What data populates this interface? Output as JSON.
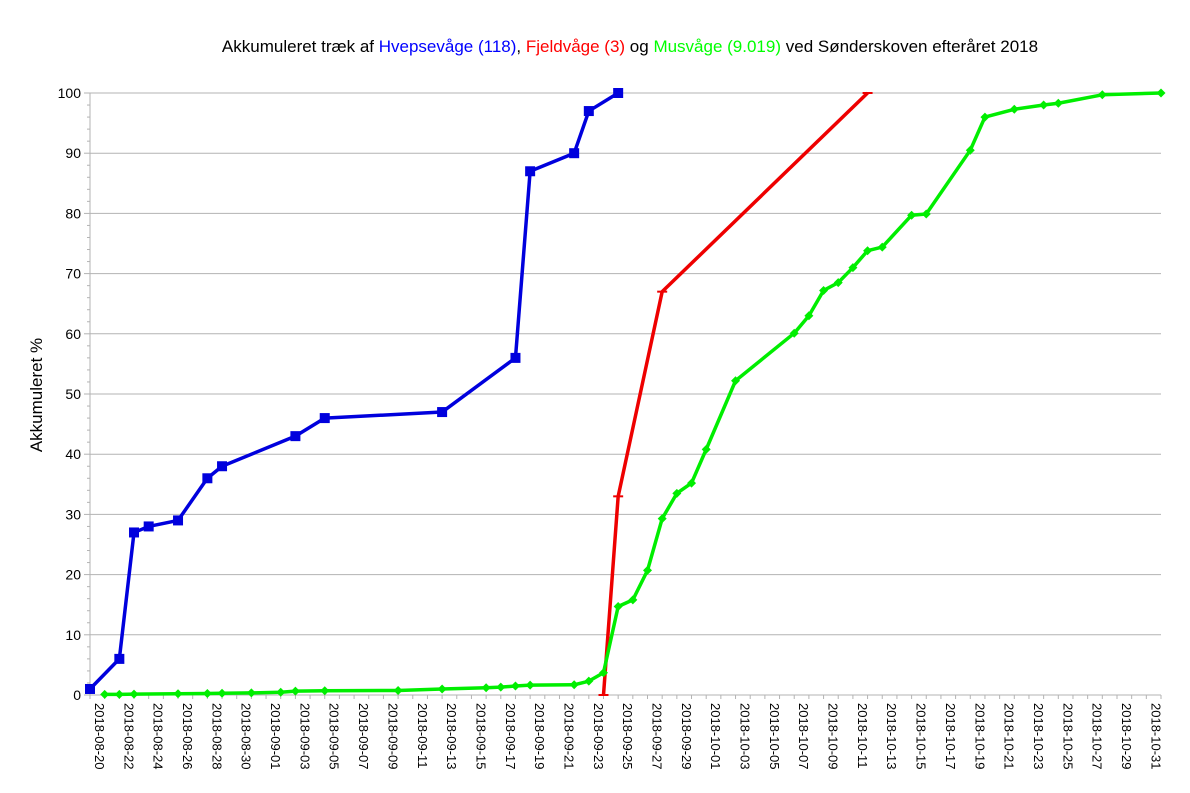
{
  "chart_data": {
    "type": "line",
    "title_parts": [
      {
        "text": "Akkumuleret træk af ",
        "color": "#000000"
      },
      {
        "text": "Hvepsevåge (118)",
        "color": "#0000ff"
      },
      {
        "text": ", ",
        "color": "#000000"
      },
      {
        "text": "Fjeldvåge (3)",
        "color": "#ff0000"
      },
      {
        "text": " og ",
        "color": "#000000"
      },
      {
        "text": "Musvåge (9.019)",
        "color": "#00ff00"
      },
      {
        "text": " ved Sønderskoven efteråret 2018",
        "color": "#000000"
      }
    ],
    "ylabel": "Akkumuleret %",
    "xlabel": "",
    "x_type": "date",
    "xlim": [
      "2018-08-20",
      "2018-11-01"
    ],
    "ylim": [
      0,
      100
    ],
    "y_ticks": [
      0,
      10,
      20,
      30,
      40,
      50,
      60,
      70,
      80,
      90,
      100
    ],
    "x_ticks": [
      "2018-08-20",
      "2018-08-22",
      "2018-08-24",
      "2018-08-26",
      "2018-08-28",
      "2018-08-30",
      "2018-09-01",
      "2018-09-03",
      "2018-09-05",
      "2018-09-07",
      "2018-09-09",
      "2018-09-11",
      "2018-09-13",
      "2018-09-15",
      "2018-09-17",
      "2018-09-19",
      "2018-09-21",
      "2018-09-23",
      "2018-09-25",
      "2018-09-27",
      "2018-09-29",
      "2018-10-01",
      "2018-10-03",
      "2018-10-05",
      "2018-10-07",
      "2018-10-09",
      "2018-10-11",
      "2018-10-13",
      "2018-10-15",
      "2018-10-17",
      "2018-10-19",
      "2018-10-21",
      "2018-10-23",
      "2018-10-25",
      "2018-10-27",
      "2018-10-29",
      "2018-10-31"
    ],
    "grid": true,
    "legend": "none",
    "series": [
      {
        "color": "#0000dd",
        "marker": "square",
        "points": [
          [
            "2018-08-20",
            1
          ],
          [
            "2018-08-22",
            6
          ],
          [
            "2018-08-23",
            27
          ],
          [
            "2018-08-24",
            28
          ],
          [
            "2018-08-26",
            29
          ],
          [
            "2018-08-28",
            36
          ],
          [
            "2018-08-29",
            38
          ],
          [
            "2018-09-03",
            43
          ],
          [
            "2018-09-05",
            46
          ],
          [
            "2018-09-13",
            47
          ],
          [
            "2018-09-18",
            56
          ],
          [
            "2018-09-19",
            87
          ],
          [
            "2018-09-22",
            90
          ],
          [
            "2018-09-23",
            97
          ],
          [
            "2018-09-25",
            100
          ]
        ]
      },
      {
        "color": "#ee0000",
        "marker": "dash",
        "points": [
          [
            "2018-09-24",
            0
          ],
          [
            "2018-09-25",
            33
          ],
          [
            "2018-09-28",
            67
          ],
          [
            "2018-10-12",
            100
          ]
        ]
      },
      {
        "color": "#00ee00",
        "marker": "diamond",
        "points": [
          [
            "2018-08-21",
            0.1
          ],
          [
            "2018-08-22",
            0.1
          ],
          [
            "2018-08-23",
            0.15
          ],
          [
            "2018-08-26",
            0.2
          ],
          [
            "2018-08-28",
            0.25
          ],
          [
            "2018-08-29",
            0.3
          ],
          [
            "2018-08-31",
            0.35
          ],
          [
            "2018-09-02",
            0.45
          ],
          [
            "2018-09-03",
            0.65
          ],
          [
            "2018-09-05",
            0.7
          ],
          [
            "2018-09-10",
            0.75
          ],
          [
            "2018-09-13",
            1.0
          ],
          [
            "2018-09-16",
            1.2
          ],
          [
            "2018-09-17",
            1.3
          ],
          [
            "2018-09-18",
            1.5
          ],
          [
            "2018-09-19",
            1.65
          ],
          [
            "2018-09-22",
            1.7
          ],
          [
            "2018-09-23",
            2.3
          ],
          [
            "2018-09-24",
            3.7
          ],
          [
            "2018-09-25",
            14.7
          ],
          [
            "2018-09-26",
            15.8
          ],
          [
            "2018-09-27",
            20.7
          ],
          [
            "2018-09-28",
            29.3
          ],
          [
            "2018-09-29",
            33.5
          ],
          [
            "2018-09-30",
            35.2
          ],
          [
            "2018-10-01",
            40.8
          ],
          [
            "2018-10-03",
            52.2
          ],
          [
            "2018-10-07",
            60.1
          ],
          [
            "2018-10-08",
            63.0
          ],
          [
            "2018-10-09",
            67.2
          ],
          [
            "2018-10-10",
            68.5
          ],
          [
            "2018-10-11",
            71.0
          ],
          [
            "2018-10-12",
            73.8
          ],
          [
            "2018-10-13",
            74.4
          ],
          [
            "2018-10-15",
            79.7
          ],
          [
            "2018-10-16",
            79.9
          ],
          [
            "2018-10-19",
            90.5
          ],
          [
            "2018-10-20",
            96.0
          ],
          [
            "2018-10-22",
            97.3
          ],
          [
            "2018-10-24",
            98.0
          ],
          [
            "2018-10-25",
            98.3
          ],
          [
            "2018-10-28",
            99.7
          ],
          [
            "2018-11-01",
            100
          ]
        ]
      }
    ]
  }
}
